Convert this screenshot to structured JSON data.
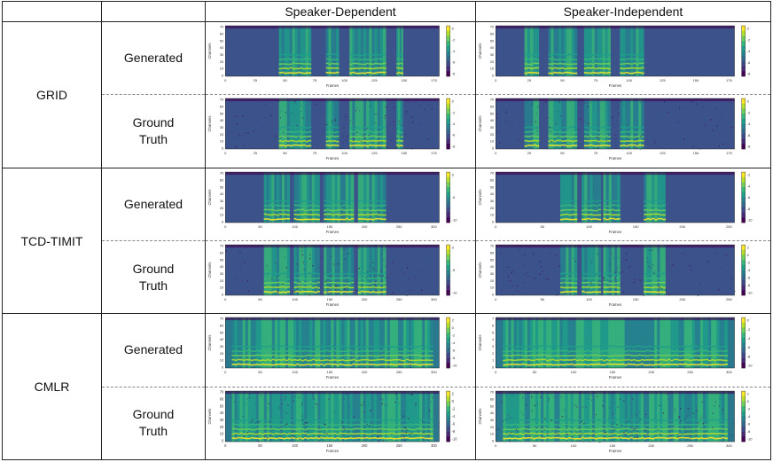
{
  "header": {
    "col_speaker_dependent": "Speaker-Dependent",
    "col_speaker_independent": "Speaker-Independent"
  },
  "axis": {
    "ylabel": "Channels",
    "xlabel": "Frames"
  },
  "datasets": [
    {
      "name": "GRID",
      "rows": [
        {
          "label_line1": "Generated",
          "label_line2": "",
          "sd": {
            "xmax": 175,
            "xticks": [
              "0",
              "25",
              "50",
              "75",
              "100",
              "125",
              "150",
              "175"
            ],
            "cticks": [
              "0",
              "-2",
              "-4",
              "-6",
              "-8"
            ],
            "yticks": [
              "70",
              "60",
              "50",
              "40",
              "30",
              "20",
              "10",
              "0"
            ]
          },
          "si": {
            "xmax": 175,
            "xticks": [
              "0",
              "25",
              "50",
              "75",
              "100",
              "125",
              "150",
              "175"
            ],
            "cticks": [
              "0",
              "-2",
              "-4",
              "-6",
              "-8"
            ],
            "yticks": [
              "70",
              "60",
              "50",
              "40",
              "30",
              "20",
              "10",
              "0"
            ]
          }
        },
        {
          "label_line1": "Ground",
          "label_line2": "Truth",
          "sd": {
            "xmax": 175,
            "xticks": [
              "0",
              "25",
              "50",
              "75",
              "100",
              "125",
              "150",
              "175"
            ],
            "cticks": [
              "0",
              "-2",
              "-4",
              "-6",
              "-8"
            ],
            "yticks": [
              "70",
              "60",
              "50",
              "40",
              "30",
              "20",
              "10",
              "0"
            ]
          },
          "si": {
            "xmax": 175,
            "xticks": [
              "0",
              "25",
              "50",
              "75",
              "100",
              "125",
              "150",
              "175"
            ],
            "cticks": [
              "0",
              "-2",
              "-4",
              "-6",
              "-8"
            ],
            "yticks": [
              "70",
              "60",
              "50",
              "40",
              "30",
              "20",
              "10",
              "0"
            ]
          }
        }
      ]
    },
    {
      "name": "TCD-TIMIT",
      "rows": [
        {
          "label_line1": "Generated",
          "label_line2": "",
          "sd": {
            "xmax": 300,
            "xticks": [
              "0",
              "50",
              "100",
              "150",
              "200",
              "250",
              "300"
            ],
            "cticks": [
              "0",
              "-5",
              "-10"
            ],
            "yticks": [
              "70",
              "60",
              "50",
              "40",
              "30",
              "20",
              "10",
              "0"
            ]
          },
          "si": {
            "xmax": 250,
            "xticks": [
              "0",
              "50",
              "100",
              "150",
              "200",
              "250"
            ],
            "cticks": [
              "-2",
              "-4",
              "-6",
              "-8",
              "-10"
            ],
            "yticks": [
              "70",
              "60",
              "50",
              "40",
              "30",
              "20",
              "10",
              "0"
            ]
          }
        },
        {
          "label_line1": "Ground",
          "label_line2": "Truth",
          "sd": {
            "xmax": 300,
            "xticks": [
              "0",
              "50",
              "100",
              "150",
              "200",
              "250",
              "300"
            ],
            "cticks": [
              "0",
              "-5",
              "-10"
            ],
            "yticks": [
              "70",
              "60",
              "50",
              "40",
              "30",
              "20",
              "10",
              "0"
            ]
          },
          "si": {
            "xmax": 250,
            "xticks": [
              "0",
              "50",
              "100",
              "150",
              "200",
              "250"
            ],
            "cticks": [
              "2",
              "0",
              "-2",
              "-4",
              "-6",
              "-8",
              "-10"
            ],
            "yticks": [
              "70",
              "60",
              "50",
              "40",
              "30",
              "20",
              "10",
              "0"
            ]
          }
        }
      ]
    },
    {
      "name": "CMLR",
      "rows": [
        {
          "label_line1": "Generated",
          "label_line2": "",
          "sd": {
            "xmax": 300,
            "xticks": [
              "0",
              "50",
              "100",
              "150",
              "200",
              "250",
              "300"
            ],
            "cticks": [
              "2",
              "0",
              "-2",
              "-4",
              "-6",
              "-8",
              "-10"
            ],
            "yticks": [
              "70",
              "60",
              "50",
              "40",
              "30",
              "20",
              "10",
              "0"
            ]
          },
          "si": {
            "xmax": 300,
            "xticks": [
              "0",
              "50",
              "100",
              "150",
              "200",
              "250",
              "300"
            ],
            "cticks": [
              "0",
              "-2",
              "-4",
              "-6",
              "-8",
              "-10"
            ],
            "yticks": [
              "7",
              "6",
              "5",
              "4",
              "3",
              "2",
              "1",
              "0"
            ]
          }
        },
        {
          "label_line1": "Ground",
          "label_line2": "Truth",
          "sd": {
            "xmax": 300,
            "xticks": [
              "0",
              "50",
              "100",
              "150",
              "200",
              "250",
              "300"
            ],
            "cticks": [
              "2",
              "0",
              "-2",
              "-4",
              "-6",
              "-8",
              "-10"
            ],
            "yticks": [
              "70",
              "60",
              "50",
              "40",
              "30",
              "20",
              "10",
              "0"
            ]
          },
          "si": {
            "xmax": 300,
            "xticks": [
              "0",
              "50",
              "100",
              "150",
              "200",
              "250",
              "300"
            ],
            "cticks": [
              "2",
              "0",
              "-2",
              "-4",
              "-6",
              "-8",
              "-10"
            ],
            "yticks": [
              "70",
              "60",
              "50",
              "40",
              "30",
              "20",
              "10",
              "0"
            ]
          }
        }
      ]
    }
  ]
}
